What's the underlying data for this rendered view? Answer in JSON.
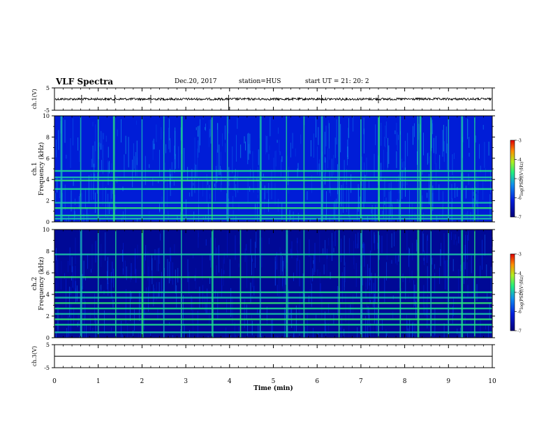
{
  "header": {
    "title": "VLF Spectra",
    "date": "Dec.20, 2017",
    "station": "station=HUS",
    "start_ut": "start UT = 21: 20: 2"
  },
  "chart_data": [
    {
      "type": "line",
      "panel": "ch1-waveform",
      "ylabel": "ch.1(V)",
      "ylim": [
        -5,
        5
      ],
      "yticks": [
        "5",
        "-5"
      ],
      "baseline": 0,
      "x": [
        0,
        10
      ],
      "xlim": [
        0,
        10
      ],
      "spikes_min": [
        0.62,
        1.38,
        2.2,
        3.98,
        6.1,
        7.4
      ]
    },
    {
      "type": "heatmap",
      "panel": "ch1-spectrogram",
      "ylabel": "ch.1 Frequency (kHz)",
      "ylim": [
        0,
        10
      ],
      "yticks": [
        "0",
        "2",
        "4",
        "6",
        "8",
        "10"
      ],
      "xlim": [
        0,
        10
      ],
      "colorbar": {
        "label": "log(PSD)(V²/Hz)",
        "range": [
          -7,
          -3
        ],
        "ticks": [
          "-3",
          "-4",
          "-5",
          "-6",
          "-7"
        ]
      },
      "horizontal_lines_khz": [
        0.3,
        0.6,
        1.3,
        1.8,
        3.1,
        3.9,
        4.2,
        4.8
      ],
      "vertical_bursts_min": [
        0.15,
        0.6,
        1.0,
        1.35,
        2.0,
        2.5,
        2.9,
        3.6,
        3.95,
        4.7,
        5.3,
        5.7,
        6.1,
        6.5,
        7.0,
        7.4,
        7.9,
        8.3,
        8.35,
        8.6,
        9.0,
        9.3,
        9.6
      ]
    },
    {
      "type": "heatmap",
      "panel": "ch2-spectrogram",
      "ylabel": "ch.2 Frequency (kHz)",
      "ylim": [
        0,
        10
      ],
      "yticks": [
        "0",
        "2",
        "4",
        "6",
        "8",
        "10"
      ],
      "xlim": [
        0,
        10
      ],
      "colorbar": {
        "label": "log(PSD)(V²/Hz)",
        "range": [
          -7,
          -3
        ],
        "ticks": [
          "-3",
          "-4",
          "-5",
          "-6",
          "-7"
        ]
      },
      "horizontal_lines_khz": [
        0.5,
        1.2,
        1.7,
        2.2,
        2.7,
        3.2,
        3.7,
        4.2,
        5.6,
        7.7
      ],
      "vertical_bursts_min": [
        0.6,
        1.0,
        1.4,
        2.0,
        2.5,
        2.9,
        3.6,
        4.25,
        4.7,
        5.3,
        5.7,
        6.5,
        7.0,
        7.4,
        7.9,
        8.3,
        8.6,
        9.0,
        9.3,
        9.6
      ]
    },
    {
      "type": "line",
      "panel": "ch3-waveform",
      "ylabel": "ch.3(V)",
      "ylim": [
        -5,
        5
      ],
      "yticks": [
        "5",
        "-5"
      ],
      "baseline": 0,
      "xlim": [
        0,
        10
      ],
      "xlabel": "Time (min)",
      "xticks": [
        "0",
        "1",
        "2",
        "3",
        "4",
        "5",
        "6",
        "7",
        "8",
        "9",
        "10"
      ]
    }
  ]
}
